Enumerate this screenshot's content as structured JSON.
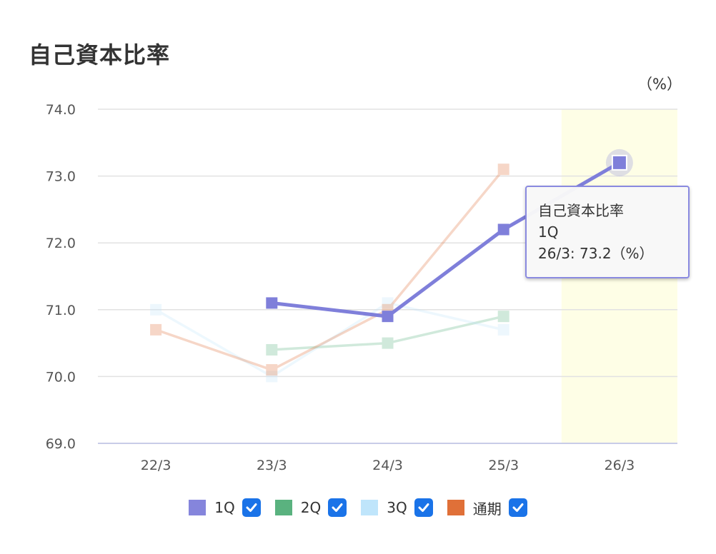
{
  "title": "自己資本比率",
  "unit": "（%）",
  "tooltip": {
    "title": "自己資本比率",
    "series": "1Q",
    "value_line": "26/3: 73.2（%）"
  },
  "legend": [
    {
      "name": "1Q",
      "color": "#8585dc",
      "checked": true
    },
    {
      "name": "2Q",
      "color": "#5ab27f",
      "checked": true
    },
    {
      "name": "3Q",
      "color": "#bfe5fb",
      "checked": true
    },
    {
      "name": "通期",
      "color": "#e07038",
      "checked": true
    }
  ],
  "chart_data": {
    "type": "line",
    "title": "自己資本比率",
    "ylabel": "（%）",
    "xlabel": "",
    "categories": [
      "22/3",
      "23/3",
      "24/3",
      "25/3",
      "26/3"
    ],
    "ylim": [
      69.0,
      74.0
    ],
    "yticks": [
      "69.0",
      "70.0",
      "71.0",
      "72.0",
      "73.0",
      "74.0"
    ],
    "highlighted_category": "26/3",
    "grid": true,
    "series": [
      {
        "name": "1Q",
        "color": "#7f7fda",
        "values": [
          null,
          71.1,
          70.9,
          72.2,
          73.2
        ],
        "active": true
      },
      {
        "name": "2Q",
        "color": "#5ab27f",
        "values": [
          null,
          70.4,
          70.5,
          70.9,
          null
        ],
        "active": false
      },
      {
        "name": "3Q",
        "color": "#bfe5fb",
        "values": [
          71.0,
          70.0,
          71.1,
          70.7,
          null
        ],
        "active": false
      },
      {
        "name": "通期",
        "color": "#e07038",
        "values": [
          70.7,
          70.1,
          71.0,
          73.1,
          null
        ],
        "active": false
      }
    ]
  }
}
